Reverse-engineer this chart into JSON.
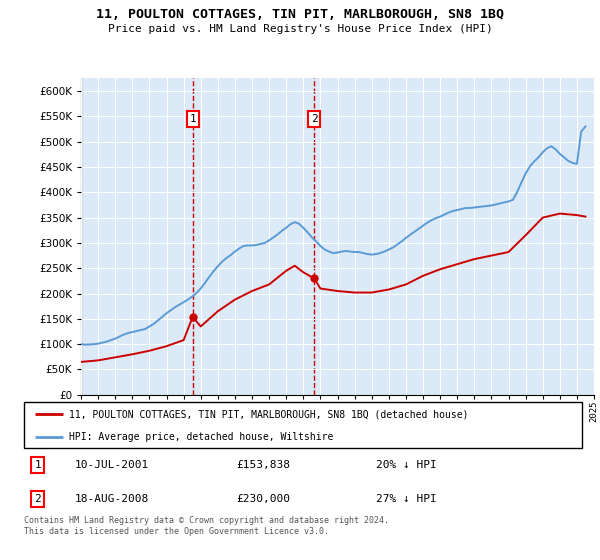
{
  "title": "11, POULTON COTTAGES, TIN PIT, MARLBOROUGH, SN8 1BQ",
  "subtitle": "Price paid vs. HM Land Registry's House Price Index (HPI)",
  "legend_line1": "11, POULTON COTTAGES, TIN PIT, MARLBOROUGH, SN8 1BQ (detached house)",
  "legend_line2": "HPI: Average price, detached house, Wiltshire",
  "footnote": "Contains HM Land Registry data © Crown copyright and database right 2024.\nThis data is licensed under the Open Government Licence v3.0.",
  "sale1_date": "10-JUL-2001",
  "sale1_price": "£153,838",
  "sale1_hpi": "20% ↓ HPI",
  "sale2_date": "18-AUG-2008",
  "sale2_price": "£230,000",
  "sale2_hpi": "27% ↓ HPI",
  "ylim": [
    0,
    625000
  ],
  "yticks": [
    0,
    50000,
    100000,
    150000,
    200000,
    250000,
    300000,
    350000,
    400000,
    450000,
    500000,
    550000,
    600000
  ],
  "sale1_x": 2001.53,
  "sale2_x": 2008.63,
  "sale1_y": 153838,
  "sale2_y": 230000,
  "bg_color": "#dce9f7",
  "red_color": "#cc0000",
  "blue_color": "#5b9bd5",
  "hpi_years": [
    1995.0,
    1995.25,
    1995.5,
    1995.75,
    1996.0,
    1996.25,
    1996.5,
    1996.75,
    1997.0,
    1997.25,
    1997.5,
    1997.75,
    1998.0,
    1998.25,
    1998.5,
    1998.75,
    1999.0,
    1999.25,
    1999.5,
    1999.75,
    2000.0,
    2000.25,
    2000.5,
    2000.75,
    2001.0,
    2001.25,
    2001.5,
    2001.75,
    2002.0,
    2002.25,
    2002.5,
    2002.75,
    2003.0,
    2003.25,
    2003.5,
    2003.75,
    2004.0,
    2004.25,
    2004.5,
    2004.75,
    2005.0,
    2005.25,
    2005.5,
    2005.75,
    2006.0,
    2006.25,
    2006.5,
    2006.75,
    2007.0,
    2007.25,
    2007.5,
    2007.75,
    2008.0,
    2008.25,
    2008.5,
    2008.75,
    2009.0,
    2009.25,
    2009.5,
    2009.75,
    2010.0,
    2010.25,
    2010.5,
    2010.75,
    2011.0,
    2011.25,
    2011.5,
    2011.75,
    2012.0,
    2012.25,
    2012.5,
    2012.75,
    2013.0,
    2013.25,
    2013.5,
    2013.75,
    2014.0,
    2014.25,
    2014.5,
    2014.75,
    2015.0,
    2015.25,
    2015.5,
    2015.75,
    2016.0,
    2016.25,
    2016.5,
    2016.75,
    2017.0,
    2017.25,
    2017.5,
    2017.75,
    2018.0,
    2018.25,
    2018.5,
    2018.75,
    2019.0,
    2019.25,
    2019.5,
    2019.75,
    2020.0,
    2020.25,
    2020.5,
    2020.75,
    2021.0,
    2021.25,
    2021.5,
    2021.75,
    2022.0,
    2022.25,
    2022.5,
    2022.75,
    2023.0,
    2023.25,
    2023.5,
    2023.75,
    2024.0,
    2024.25,
    2024.5
  ],
  "hpi_values": [
    100000,
    99000,
    99500,
    100000,
    101000,
    103000,
    105000,
    108000,
    111000,
    115000,
    119000,
    122000,
    124000,
    126000,
    128000,
    130000,
    135000,
    140000,
    147000,
    154000,
    161000,
    167000,
    173000,
    178000,
    183000,
    188000,
    194000,
    201000,
    210000,
    221000,
    233000,
    244000,
    254000,
    263000,
    270000,
    276000,
    283000,
    289000,
    294000,
    295000,
    295000,
    296000,
    298000,
    300000,
    305000,
    311000,
    317000,
    324000,
    330000,
    337000,
    341000,
    338000,
    330000,
    321000,
    311000,
    303000,
    294000,
    287000,
    283000,
    280000,
    281000,
    283000,
    284000,
    283000,
    282000,
    282000,
    280000,
    278000,
    277000,
    278000,
    280000,
    283000,
    287000,
    291000,
    297000,
    303000,
    310000,
    316000,
    322000,
    328000,
    334000,
    340000,
    345000,
    349000,
    352000,
    356000,
    360000,
    363000,
    365000,
    367000,
    369000,
    369000,
    370000,
    371000,
    372000,
    373000,
    374000,
    376000,
    378000,
    380000,
    382000,
    385000,
    400000,
    419000,
    437000,
    451000,
    461000,
    469000,
    479000,
    487000,
    491000,
    485000,
    476000,
    469000,
    462000,
    458000,
    456000,
    520000,
    530000
  ],
  "pp_years": [
    1995.0,
    1996.0,
    1997.0,
    1998.0,
    1999.0,
    2000.0,
    2001.0,
    2001.53,
    2002.0,
    2003.0,
    2004.0,
    2005.0,
    2006.0,
    2007.0,
    2007.5,
    2008.0,
    2008.63,
    2009.0,
    2010.0,
    2011.0,
    2012.0,
    2013.0,
    2014.0,
    2015.0,
    2016.0,
    2017.0,
    2018.0,
    2019.0,
    2020.0,
    2021.0,
    2022.0,
    2023.0,
    2024.0,
    2024.5
  ],
  "pp_values": [
    65000,
    68000,
    74000,
    80000,
    87000,
    96000,
    108000,
    153838,
    135000,
    165000,
    188000,
    205000,
    218000,
    245000,
    255000,
    242000,
    230000,
    210000,
    205000,
    202000,
    202000,
    208000,
    218000,
    235000,
    248000,
    258000,
    268000,
    275000,
    282000,
    315000,
    350000,
    358000,
    355000,
    352000
  ],
  "x_min": 1995,
  "x_max": 2025
}
